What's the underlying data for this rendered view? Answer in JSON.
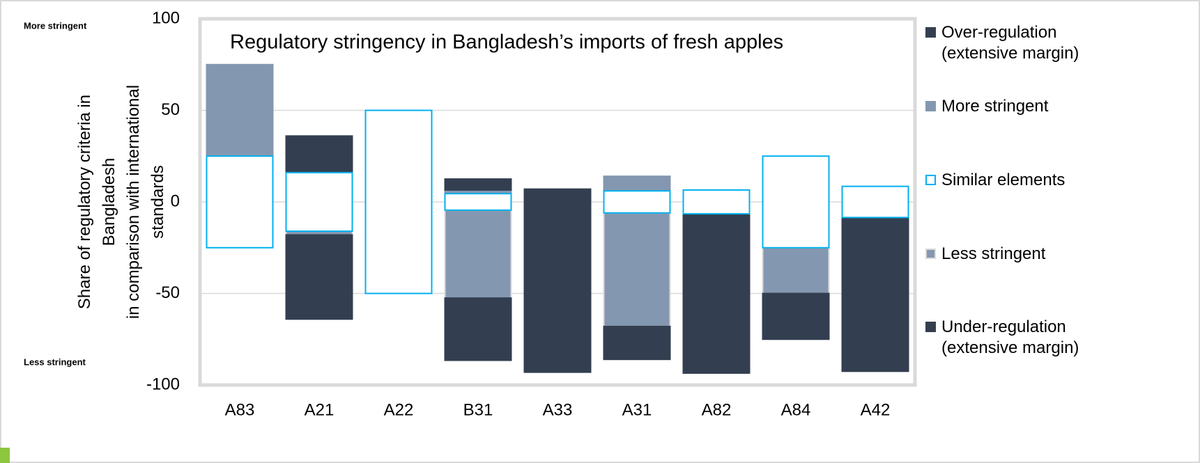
{
  "chart_data": {
    "type": "bar",
    "title": "Regulatory stringency in Bangladesh’s imports of fresh apples",
    "ylabel": [
      "Share of regulatory criteria in",
      "Bangladesh",
      "in comparison with international",
      "standards"
    ],
    "annotations": [
      "More stringent",
      "Less stringent"
    ],
    "categories": [
      "A83",
      "A21",
      "A22",
      "B31",
      "A33",
      "A31",
      "A82",
      "A84",
      "A42"
    ],
    "series": [
      {
        "name": "Over-regulation (extensive margin)",
        "color": "#333f50",
        "edgecolor": "#333f50",
        "values": [
          0,
          20,
          0,
          6,
          7,
          0,
          0,
          0,
          0
        ]
      },
      {
        "name": "More stringent",
        "color": "#8497b0",
        "edgecolor": "#8497b0",
        "values": [
          50,
          0,
          0,
          2,
          0,
          8,
          0,
          0,
          0
        ]
      },
      {
        "name": "Similar elements",
        "color": "#ffffff",
        "edgecolor": "#00b0f0",
        "values": [
          50,
          32,
          100,
          9,
          0,
          12,
          13,
          50,
          17
        ]
      },
      {
        "name": "Less stringent",
        "color": "#8497b0",
        "edgecolor": "#d9d9d9",
        "values": [
          0,
          2,
          0,
          48,
          0,
          62,
          0,
          25,
          0
        ]
      },
      {
        "name": "Under-regulation (extensive margin)",
        "color": "#333f50",
        "edgecolor": "#333f50",
        "values": [
          0,
          46,
          0,
          34,
          93,
          18,
          87,
          25,
          84
        ]
      }
    ],
    "ylim": [
      -100,
      100
    ],
    "yticks": [
      -100,
      -50,
      0,
      50,
      100
    ],
    "grid": true
  }
}
